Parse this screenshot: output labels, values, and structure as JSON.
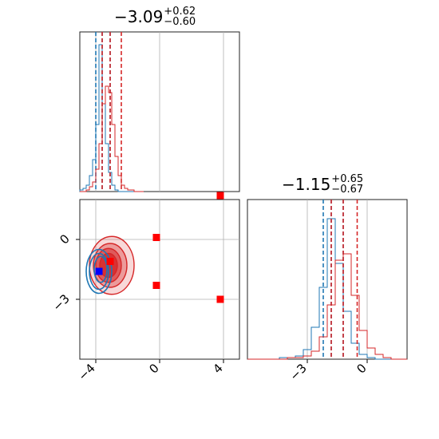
{
  "chart_data": {
    "type": "corner",
    "series": [
      {
        "name": "",
        "color": "#1f77b4"
      },
      {
        "name": "",
        "color": "#d62728"
      }
    ],
    "parameters": [
      {
        "title_value": "−3.09",
        "title_plus": "+0.62",
        "title_minus": "−0.60",
        "range": [
          -5,
          5
        ],
        "ticks": [
          -4,
          0,
          4
        ],
        "tick_labels": [
          "−4",
          "0",
          "4"
        ],
        "quantiles": {
          "#1f77b4": [
            -4.0,
            -3.6,
            -3.1
          ],
          "#d62728": [
            -3.6,
            -3.1,
            -2.4
          ]
        }
      },
      {
        "title_value": "−1.15",
        "title_plus": "+0.65",
        "title_minus": "−0.67",
        "range": [
          -6,
          2
        ],
        "ticks": [
          -3,
          0
        ],
        "tick_labels": [
          "−3",
          "0"
        ],
        "quantiles": {
          "#1f77b4": [
            -2.2,
            -1.8,
            -1.2
          ],
          "#d62728": [
            -1.8,
            -1.2,
            -0.5
          ]
        }
      }
    ],
    "hist_1d": {
      "p0": {
        "bin_edges": [
          -5,
          -4.8,
          -4.6,
          -4.4,
          -4.2,
          -4.0,
          -3.8,
          -3.6,
          -3.4,
          -3.2,
          -3.0,
          -2.8,
          -2.6,
          -2.4,
          -2.2,
          -2.0,
          -1.8,
          -1.6,
          -1.4,
          -1.2,
          -1.0
        ],
        "#1f77b4": [
          0.01,
          0.02,
          0.04,
          0.1,
          0.2,
          0.42,
          0.92,
          0.55,
          0.3,
          0.12,
          0.04,
          0.01,
          0,
          0,
          0,
          0,
          0,
          0,
          0,
          0
        ],
        "#d62728": [
          0,
          0,
          0.01,
          0.03,
          0.06,
          0.14,
          0.3,
          0.55,
          0.66,
          0.62,
          0.42,
          0.22,
          0.1,
          0.04,
          0.02,
          0.01,
          0.01,
          0,
          0,
          0
        ]
      },
      "p1": {
        "bin_edges": [
          -6.0,
          -5.6,
          -5.2,
          -4.8,
          -4.4,
          -4.0,
          -3.6,
          -3.2,
          -2.8,
          -2.4,
          -2.0,
          -1.6,
          -1.2,
          -0.8,
          -0.4,
          0.0,
          0.4,
          0.8,
          1.2,
          1.6,
          2.0
        ],
        "#1f77b4": [
          0,
          0,
          0,
          0,
          0.01,
          0.01,
          0.02,
          0.06,
          0.2,
          0.45,
          0.88,
          0.6,
          0.3,
          0.1,
          0.03,
          0.01,
          0,
          0,
          0,
          0
        ],
        "#d62728": [
          0,
          0,
          0,
          0,
          0,
          0.01,
          0.01,
          0.02,
          0.05,
          0.14,
          0.34,
          0.62,
          0.66,
          0.4,
          0.18,
          0.07,
          0.03,
          0.01,
          0,
          0
        ]
      }
    },
    "contours_2d": {
      "#d62728": [
        {
          "center": [
            -3.0,
            -1.3
          ],
          "radius": [
            1.4,
            1.45
          ]
        },
        {
          "center": [
            -3.1,
            -1.3
          ],
          "radius": [
            1.05,
            1.1
          ]
        },
        {
          "center": [
            -3.2,
            -1.3
          ],
          "radius": [
            0.8,
            0.85
          ]
        },
        {
          "center": [
            -3.2,
            -1.3
          ],
          "radius": [
            0.55,
            0.6
          ]
        }
      ],
      "#1f77b4": [
        {
          "center": [
            -3.8,
            -1.6
          ],
          "radius": [
            0.8,
            1.1
          ]
        },
        {
          "center": [
            -3.8,
            -1.6
          ],
          "radius": [
            0.6,
            0.9
          ]
        },
        {
          "center": [
            -3.7,
            -1.5
          ],
          "radius": [
            0.4,
            0.65
          ]
        }
      ]
    },
    "markers_2d": {
      "#d62728": [
        [
          -0.2,
          0.1
        ],
        [
          3.8,
          2.2
        ],
        [
          -0.2,
          -2.3
        ],
        [
          3.8,
          -3.0
        ],
        [
          -3.1,
          -1.1
        ]
      ],
      "#1f77b4": [
        [
          -3.8,
          -1.6
        ]
      ]
    },
    "grid": true
  }
}
